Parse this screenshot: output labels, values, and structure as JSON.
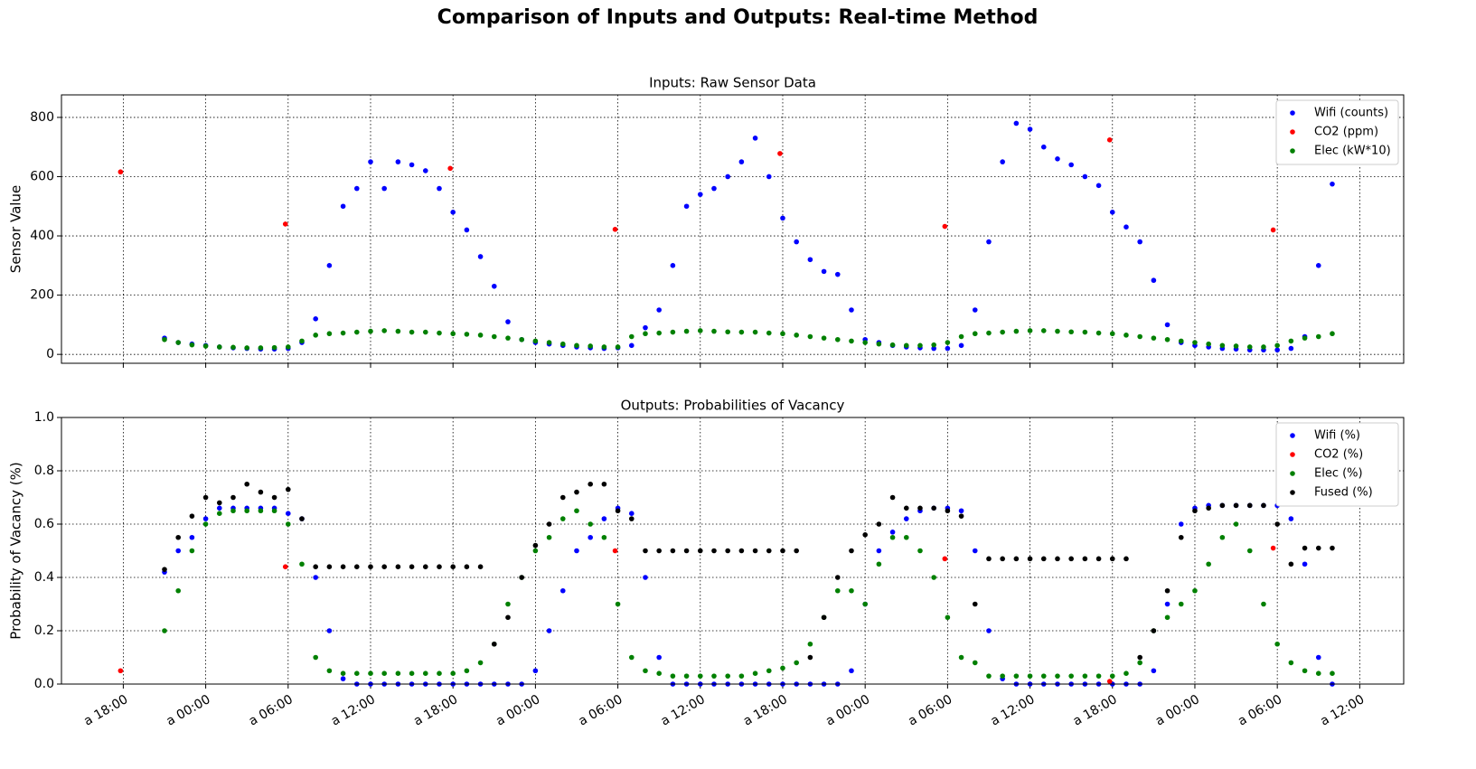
{
  "title": "Comparison of Inputs and Outputs: Real-time Method",
  "chart_data": [
    {
      "type": "scatter",
      "title": "Inputs: Raw Sensor Data",
      "y_label": "Sensor Value",
      "xlim": [
        -4.5,
        93.2
      ],
      "ylim": [
        -30,
        876
      ],
      "yticks": [
        0,
        200,
        400,
        600,
        800
      ],
      "xticks": [
        0,
        6,
        12,
        18,
        24,
        30,
        36,
        42,
        48,
        54,
        60,
        66,
        72,
        78,
        84,
        90
      ],
      "grid": true,
      "legend": "upper right",
      "x": [
        3,
        4,
        5,
        6,
        7,
        8,
        9,
        10,
        11,
        12,
        13,
        14,
        15,
        16,
        17,
        18,
        19,
        20,
        21,
        22,
        23,
        24,
        25,
        26,
        27,
        28,
        29,
        30,
        31,
        32,
        33,
        34,
        35,
        36,
        37,
        38,
        39,
        40,
        41,
        42,
        43,
        44,
        45,
        46,
        47,
        48,
        49,
        50,
        51,
        52,
        53,
        54,
        55,
        56,
        57,
        58,
        59,
        60,
        61,
        62,
        63,
        64,
        65,
        66,
        67,
        68,
        69,
        70,
        71,
        72,
        73,
        74,
        75,
        76,
        77,
        78,
        79,
        80,
        81,
        82,
        83,
        84,
        85,
        86,
        87,
        88
      ],
      "series": [
        {
          "name": "Wifi (counts)",
          "color": "#0000ff",
          "values": [
            55,
            40,
            35,
            30,
            25,
            22,
            20,
            18,
            18,
            20,
            40,
            120,
            300,
            500,
            560,
            650,
            560,
            650,
            640,
            620,
            560,
            480,
            420,
            330,
            230,
            110,
            50,
            40,
            35,
            30,
            25,
            22,
            20,
            22,
            30,
            90,
            150,
            300,
            500,
            540,
            560,
            600,
            650,
            730,
            600,
            460,
            380,
            320,
            280,
            270,
            150,
            50,
            40,
            30,
            25,
            22,
            20,
            20,
            30,
            150,
            380,
            650,
            780,
            760,
            700,
            660,
            640,
            600,
            570,
            480,
            430,
            380,
            250,
            100,
            40,
            30,
            25,
            20,
            18,
            15,
            15,
            15,
            20,
            60,
            300,
            575
          ]
        },
        {
          "name": "CO2 (ppm)",
          "color": "#ff0000",
          "x": [
            -0.2,
            11.8,
            23.8,
            35.8,
            47.8,
            59.8,
            71.8,
            83.7
          ],
          "values": [
            616,
            440,
            628,
            422,
            678,
            432,
            724,
            420
          ]
        },
        {
          "name": "Elec (kW*10)",
          "color": "#008000",
          "values": [
            50,
            40,
            32,
            28,
            25,
            24,
            22,
            22,
            23,
            25,
            45,
            65,
            70,
            72,
            75,
            78,
            80,
            78,
            75,
            75,
            72,
            70,
            68,
            65,
            60,
            55,
            50,
            45,
            40,
            35,
            30,
            28,
            25,
            25,
            60,
            70,
            72,
            75,
            78,
            80,
            78,
            76,
            75,
            75,
            72,
            70,
            65,
            60,
            55,
            50,
            45,
            40,
            35,
            32,
            30,
            30,
            32,
            40,
            60,
            70,
            72,
            75,
            78,
            80,
            80,
            78,
            76,
            75,
            72,
            70,
            65,
            60,
            55,
            50,
            45,
            40,
            35,
            30,
            28,
            25,
            25,
            30,
            45,
            55,
            60,
            70
          ]
        }
      ]
    },
    {
      "type": "scatter",
      "title": "Outputs: Probabilities of Vacancy",
      "y_label": "Probability of Vacancy (%)",
      "xlim": [
        -4.5,
        93.2
      ],
      "ylim": [
        0,
        1
      ],
      "yticks": [
        {
          "value": 0,
          "label": "0.0"
        },
        0.2,
        0.4,
        0.6,
        0.8,
        {
          "value": 1,
          "label": "1.0"
        }
      ],
      "xticks": [
        {
          "value": 0,
          "label": "a 18:00"
        },
        {
          "value": 6,
          "label": "a 00:00"
        },
        {
          "value": 12,
          "label": "a 06:00"
        },
        {
          "value": 18,
          "label": "a 12:00"
        },
        {
          "value": 24,
          "label": "a 18:00"
        },
        {
          "value": 30,
          "label": "a 00:00"
        },
        {
          "value": 36,
          "label": "a 06:00"
        },
        {
          "value": 42,
          "label": "a 12:00"
        },
        {
          "value": 48,
          "label": "a 18:00"
        },
        {
          "value": 54,
          "label": "a 00:00"
        },
        {
          "value": 60,
          "label": "a 06:00"
        },
        {
          "value": 66,
          "label": "a 12:00"
        },
        {
          "value": 72,
          "label": "a 18:00"
        },
        {
          "value": 78,
          "label": "a 00:00"
        },
        {
          "value": 84,
          "label": "a 06:00"
        },
        {
          "value": 90,
          "label": "a 12:00"
        }
      ],
      "grid": true,
      "legend": "upper right",
      "x": [
        3,
        4,
        5,
        6,
        7,
        8,
        9,
        10,
        11,
        12,
        13,
        14,
        15,
        16,
        17,
        18,
        19,
        20,
        21,
        22,
        23,
        24,
        25,
        26,
        27,
        28,
        29,
        30,
        31,
        32,
        33,
        34,
        35,
        36,
        37,
        38,
        39,
        40,
        41,
        42,
        43,
        44,
        45,
        46,
        47,
        48,
        49,
        50,
        51,
        52,
        53,
        54,
        55,
        56,
        57,
        58,
        59,
        60,
        61,
        62,
        63,
        64,
        65,
        66,
        67,
        68,
        69,
        70,
        71,
        72,
        73,
        74,
        75,
        76,
        77,
        78,
        79,
        80,
        81,
        82,
        83,
        84,
        85,
        86,
        87,
        88
      ],
      "series": [
        {
          "name": "Wifi (%)",
          "color": "#0000ff",
          "values": [
            0.42,
            0.5,
            0.55,
            0.62,
            0.66,
            0.66,
            0.66,
            0.66,
            0.66,
            0.64,
            0.62,
            0.4,
            0.2,
            0.02,
            0,
            0,
            0,
            0,
            0,
            0,
            0,
            0,
            0,
            0,
            0,
            0,
            0,
            0.05,
            0.2,
            0.35,
            0.5,
            0.55,
            0.62,
            0.66,
            0.64,
            0.4,
            0.1,
            0,
            0,
            0,
            0,
            0,
            0,
            0,
            0,
            0,
            0,
            0,
            0,
            0,
            0.05,
            0.3,
            0.5,
            0.57,
            0.62,
            0.65,
            0.66,
            0.66,
            0.65,
            0.5,
            0.2,
            0.02,
            0,
            0,
            0,
            0,
            0,
            0,
            0,
            0,
            0,
            0,
            0.05,
            0.3,
            0.6,
            0.66,
            0.67,
            0.67,
            0.67,
            0.67,
            0.67,
            0.67,
            0.62,
            0.45,
            0.1,
            0
          ]
        },
        {
          "name": "CO2 (%)",
          "color": "#ff0000",
          "x": [
            -0.2,
            11.8,
            35.8,
            59.8,
            71.8,
            83.7
          ],
          "values": [
            0.05,
            0.44,
            0.5,
            0.47,
            0.01,
            0.51
          ]
        },
        {
          "name": "Elec (%)",
          "color": "#008000",
          "values": [
            0.2,
            0.35,
            0.5,
            0.6,
            0.64,
            0.65,
            0.65,
            0.65,
            0.65,
            0.6,
            0.45,
            0.1,
            0.05,
            0.04,
            0.04,
            0.04,
            0.04,
            0.04,
            0.04,
            0.04,
            0.04,
            0.04,
            0.05,
            0.08,
            0.15,
            0.3,
            0.4,
            0.5,
            0.55,
            0.62,
            0.65,
            0.6,
            0.55,
            0.3,
            0.1,
            0.05,
            0.04,
            0.03,
            0.03,
            0.03,
            0.03,
            0.03,
            0.03,
            0.04,
            0.05,
            0.06,
            0.08,
            0.15,
            0.25,
            0.35,
            0.35,
            0.3,
            0.45,
            0.55,
            0.55,
            0.5,
            0.4,
            0.25,
            0.1,
            0.08,
            0.03,
            0.03,
            0.03,
            0.03,
            0.03,
            0.03,
            0.03,
            0.03,
            0.03,
            0.03,
            0.04,
            0.08,
            0.2,
            0.25,
            0.3,
            0.35,
            0.45,
            0.55,
            0.6,
            0.5,
            0.3,
            0.15,
            0.08,
            0.05,
            0.04,
            0.04
          ]
        },
        {
          "name": "Fused (%)",
          "color": "#000000",
          "values": [
            0.43,
            0.55,
            0.63,
            0.7,
            0.68,
            0.7,
            0.75,
            0.72,
            0.7,
            0.73,
            0.62,
            0.44,
            0.44,
            0.44,
            0.44,
            0.44,
            0.44,
            0.44,
            0.44,
            0.44,
            0.44,
            0.44,
            0.44,
            0.44,
            0.15,
            0.25,
            0.4,
            0.52,
            0.6,
            0.7,
            0.72,
            0.75,
            0.75,
            0.65,
            0.62,
            0.5,
            0.5,
            0.5,
            0.5,
            0.5,
            0.5,
            0.5,
            0.5,
            0.5,
            0.5,
            0.5,
            0.5,
            0.1,
            0.25,
            0.4,
            0.5,
            0.56,
            0.6,
            0.7,
            0.66,
            0.66,
            0.66,
            0.65,
            0.63,
            0.3,
            0.47,
            0.47,
            0.47,
            0.47,
            0.47,
            0.47,
            0.47,
            0.47,
            0.47,
            0.47,
            0.47,
            0.1,
            0.2,
            0.35,
            0.55,
            0.65,
            0.66,
            0.67,
            0.67,
            0.67,
            0.67,
            0.6,
            0.45,
            0.51,
            0.51,
            0.51
          ]
        }
      ]
    }
  ]
}
